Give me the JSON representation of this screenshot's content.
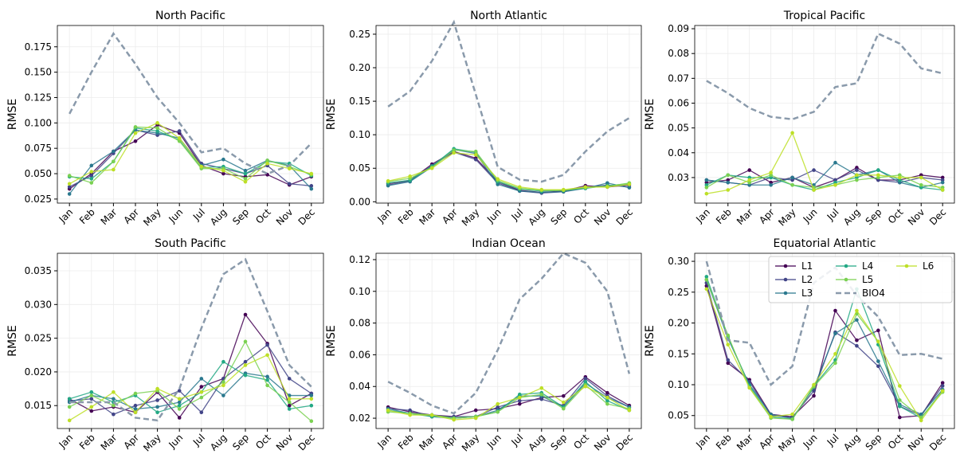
{
  "chart_data": [
    {
      "type": "line",
      "title": "North Pacific",
      "ylabel": "RMSE",
      "categories": [
        "Jan",
        "Feb",
        "Mar",
        "Apr",
        "May",
        "Jun",
        "Jul",
        "Aug",
        "Sep",
        "Oct",
        "Nov",
        "Dec"
      ],
      "ylim": [
        0.021,
        0.196
      ],
      "yticks": [
        0.025,
        {
          "value": 0.05,
          "label": "0.050"
        },
        0.075,
        {
          "value": 0.1,
          "label": "0.100"
        },
        0.125,
        {
          "value": 0.15,
          "label": "0.150"
        },
        0.175
      ],
      "grid": true,
      "series": [
        {
          "name": "L1",
          "color": "#440154",
          "values": [
            0.035,
            0.05,
            0.072,
            0.082,
            0.098,
            0.09,
            0.058,
            0.05,
            0.047,
            0.049,
            0.039,
            0.047
          ]
        },
        {
          "name": "L2",
          "color": "#414487",
          "values": [
            0.037,
            0.048,
            0.07,
            0.093,
            0.088,
            0.092,
            0.06,
            0.055,
            0.05,
            0.058,
            0.04,
            0.038
          ]
        },
        {
          "name": "L3",
          "color": "#2a788e",
          "values": [
            0.03,
            0.058,
            0.072,
            0.093,
            0.09,
            0.085,
            0.058,
            0.064,
            0.053,
            0.063,
            0.058,
            0.035
          ]
        },
        {
          "name": "L4",
          "color": "#22a884",
          "values": [
            0.047,
            0.045,
            0.062,
            0.095,
            0.092,
            0.083,
            0.056,
            0.057,
            0.05,
            0.062,
            0.06,
            0.048
          ]
        },
        {
          "name": "L5",
          "color": "#7ad151",
          "values": [
            0.048,
            0.041,
            0.062,
            0.096,
            0.095,
            0.082,
            0.055,
            0.055,
            0.045,
            0.063,
            0.057,
            0.049
          ]
        },
        {
          "name": "L6",
          "color": "#bddf26",
          "values": [
            0.04,
            0.052,
            0.054,
            0.09,
            0.1,
            0.085,
            0.057,
            0.053,
            0.042,
            0.06,
            0.055,
            0.05
          ]
        },
        {
          "name": "BIO4",
          "color": "#8a9aab",
          "dashed": true,
          "values": [
            0.109,
            0.15,
            0.188,
            0.158,
            0.125,
            0.1,
            0.071,
            0.075,
            0.06,
            0.05,
            0.058,
            0.08
          ]
        }
      ]
    },
    {
      "type": "line",
      "title": "North Atlantic",
      "ylabel": "RMSE",
      "categories": [
        "Jan",
        "Feb",
        "Mar",
        "Apr",
        "May",
        "Jun",
        "Jul",
        "Aug",
        "Sep",
        "Oct",
        "Nov",
        "Dec"
      ],
      "ylim": [
        -0.002,
        0.263
      ],
      "yticks": [
        {
          "value": 0,
          "label": "0.00"
        },
        0.05,
        {
          "value": 0.1,
          "label": "0.10"
        },
        0.15,
        {
          "value": 0.2,
          "label": "0.20"
        },
        0.25
      ],
      "grid": true,
      "series": [
        {
          "name": "L1",
          "color": "#440154",
          "values": [
            0.027,
            0.032,
            0.056,
            0.075,
            0.065,
            0.03,
            0.017,
            0.014,
            0.016,
            0.024,
            0.022,
            0.025
          ]
        },
        {
          "name": "L2",
          "color": "#414487",
          "values": [
            0.025,
            0.031,
            0.054,
            0.074,
            0.063,
            0.028,
            0.016,
            0.013,
            0.015,
            0.021,
            0.025,
            0.022
          ]
        },
        {
          "name": "L3",
          "color": "#2a788e",
          "values": [
            0.024,
            0.03,
            0.052,
            0.078,
            0.072,
            0.026,
            0.016,
            0.014,
            0.015,
            0.02,
            0.028,
            0.021
          ]
        },
        {
          "name": "L4",
          "color": "#22a884",
          "values": [
            0.028,
            0.032,
            0.053,
            0.079,
            0.074,
            0.03,
            0.019,
            0.016,
            0.017,
            0.02,
            0.024,
            0.027
          ]
        },
        {
          "name": "L5",
          "color": "#7ad151",
          "values": [
            0.03,
            0.035,
            0.051,
            0.077,
            0.075,
            0.032,
            0.02,
            0.017,
            0.017,
            0.021,
            0.023,
            0.028
          ]
        },
        {
          "name": "L6",
          "color": "#bddf26",
          "values": [
            0.031,
            0.038,
            0.05,
            0.073,
            0.07,
            0.034,
            0.022,
            0.018,
            0.018,
            0.022,
            0.022,
            0.026
          ]
        },
        {
          "name": "BIO4",
          "color": "#8a9aab",
          "dashed": true,
          "values": [
            0.142,
            0.165,
            0.21,
            0.268,
            0.16,
            0.052,
            0.033,
            0.03,
            0.04,
            0.075,
            0.105,
            0.125
          ]
        }
      ]
    },
    {
      "type": "line",
      "title": "Tropical Pacific",
      "ylabel": "RMSE",
      "categories": [
        "Jan",
        "Feb",
        "Mar",
        "Apr",
        "May",
        "Jun",
        "Jul",
        "Aug",
        "Sep",
        "Oct",
        "Nov",
        "Dec"
      ],
      "ylim": [
        0.0197,
        0.0913
      ],
      "yticks": [
        0.03,
        0.04,
        0.05,
        0.06,
        0.07,
        0.08,
        0.09
      ],
      "grid": true,
      "series": [
        {
          "name": "L1",
          "color": "#440154",
          "values": [
            0.028,
            0.029,
            0.033,
            0.028,
            0.03,
            0.026,
            0.029,
            0.034,
            0.029,
            0.029,
            0.031,
            0.03
          ]
        },
        {
          "name": "L2",
          "color": "#414487",
          "values": [
            0.029,
            0.028,
            0.027,
            0.03,
            0.029,
            0.033,
            0.029,
            0.033,
            0.029,
            0.028,
            0.03,
            0.029
          ]
        },
        {
          "name": "L3",
          "color": "#2a788e",
          "values": [
            0.029,
            0.028,
            0.027,
            0.027,
            0.03,
            0.027,
            0.036,
            0.031,
            0.033,
            0.028,
            0.026,
            0.028
          ]
        },
        {
          "name": "L4",
          "color": "#22a884",
          "values": [
            0.027,
            0.031,
            0.03,
            0.03,
            0.027,
            0.025,
            0.028,
            0.03,
            0.033,
            0.029,
            0.026,
            0.025
          ]
        },
        {
          "name": "L5",
          "color": "#7ad151",
          "values": [
            0.026,
            0.031,
            0.028,
            0.031,
            0.027,
            0.026,
            0.027,
            0.029,
            0.03,
            0.031,
            0.027,
            0.026
          ]
        },
        {
          "name": "L6",
          "color": "#bddf26",
          "values": [
            0.0235,
            0.025,
            0.029,
            0.032,
            0.048,
            0.025,
            0.027,
            0.031,
            0.031,
            0.03,
            0.03,
            0.025
          ]
        },
        {
          "name": "BIO4",
          "color": "#8a9aab",
          "dashed": true,
          "values": [
            0.069,
            0.064,
            0.058,
            0.0545,
            0.0535,
            0.0565,
            0.0665,
            0.068,
            0.088,
            0.084,
            0.074,
            0.072
          ]
        }
      ]
    },
    {
      "type": "line",
      "title": "South Pacific",
      "ylabel": "RMSE",
      "categories": [
        "Jan",
        "Feb",
        "Mar",
        "Apr",
        "May",
        "Jun",
        "Jul",
        "Aug",
        "Sep",
        "Oct",
        "Nov",
        "Dec"
      ],
      "ylim": [
        0.0116,
        0.0376
      ],
      "yticks": [
        0.015,
        {
          "value": 0.02,
          "label": "0.020"
        },
        0.025,
        {
          "value": 0.03,
          "label": "0.030"
        },
        0.035
      ],
      "grid": true,
      "series": [
        {
          "name": "L1",
          "color": "#440154",
          "values": [
            0.016,
            0.0142,
            0.0148,
            0.014,
            0.017,
            0.0132,
            0.0178,
            0.019,
            0.0285,
            0.0242,
            0.015,
            0.0168
          ]
        },
        {
          "name": "L2",
          "color": "#414487",
          "values": [
            0.0157,
            0.016,
            0.0137,
            0.015,
            0.0158,
            0.0172,
            0.014,
            0.019,
            0.0215,
            0.024,
            0.019,
            0.0168
          ]
        },
        {
          "name": "L3",
          "color": "#2a788e",
          "values": [
            0.0155,
            0.0165,
            0.016,
            0.0145,
            0.0148,
            0.0155,
            0.019,
            0.0165,
            0.0198,
            0.0193,
            0.0165,
            0.0165
          ]
        },
        {
          "name": "L4",
          "color": "#22a884",
          "values": [
            0.016,
            0.017,
            0.0155,
            0.0165,
            0.014,
            0.015,
            0.017,
            0.0215,
            0.0195,
            0.0188,
            0.0145,
            0.015
          ]
        },
        {
          "name": "L5",
          "color": "#7ad151",
          "values": [
            0.0148,
            0.0165,
            0.015,
            0.0168,
            0.0172,
            0.0145,
            0.0162,
            0.0185,
            0.0245,
            0.018,
            0.0155,
            0.0127
          ]
        },
        {
          "name": "L6",
          "color": "#bddf26",
          "values": [
            0.0128,
            0.0148,
            0.017,
            0.014,
            0.0175,
            0.016,
            0.017,
            0.018,
            0.021,
            0.0225,
            0.016,
            0.016
          ]
        },
        {
          "name": "BIO4",
          "color": "#8a9aab",
          "dashed": true,
          "values": [
            0.0155,
            0.0155,
            0.0155,
            0.0132,
            0.0128,
            0.0175,
            0.0265,
            0.0345,
            0.0367,
            0.029,
            0.021,
            0.0178
          ]
        }
      ]
    },
    {
      "type": "line",
      "title": "Indian Ocean",
      "ylabel": "RMSE",
      "categories": [
        "Jan",
        "Feb",
        "Mar",
        "Apr",
        "May",
        "Jun",
        "Jul",
        "Aug",
        "Sep",
        "Oct",
        "Nov",
        "Dec"
      ],
      "ylim": [
        0.0135,
        0.124
      ],
      "yticks": [
        0.02,
        0.04,
        0.06,
        0.08,
        {
          "value": 0.1,
          "label": "0.10"
        },
        0.12
      ],
      "grid": true,
      "series": [
        {
          "name": "L1",
          "color": "#440154",
          "values": [
            0.027,
            0.024,
            0.022,
            0.021,
            0.025,
            0.026,
            0.029,
            0.033,
            0.034,
            0.046,
            0.036,
            0.028
          ]
        },
        {
          "name": "L2",
          "color": "#414487",
          "values": [
            0.026,
            0.025,
            0.021,
            0.021,
            0.021,
            0.027,
            0.031,
            0.032,
            0.028,
            0.045,
            0.034,
            0.027
          ]
        },
        {
          "name": "L3",
          "color": "#2a788e",
          "values": [
            0.026,
            0.023,
            0.022,
            0.02,
            0.021,
            0.025,
            0.034,
            0.034,
            0.027,
            0.042,
            0.033,
            0.027
          ]
        },
        {
          "name": "L4",
          "color": "#22a884",
          "values": [
            0.025,
            0.023,
            0.021,
            0.02,
            0.021,
            0.024,
            0.035,
            0.036,
            0.027,
            0.043,
            0.031,
            0.025
          ]
        },
        {
          "name": "L5",
          "color": "#7ad151",
          "values": [
            0.024,
            0.023,
            0.022,
            0.02,
            0.021,
            0.024,
            0.033,
            0.035,
            0.026,
            0.041,
            0.029,
            0.026
          ]
        },
        {
          "name": "L6",
          "color": "#bddf26",
          "values": [
            0.025,
            0.022,
            0.022,
            0.019,
            0.02,
            0.029,
            0.033,
            0.039,
            0.03,
            0.04,
            0.033,
            0.025
          ]
        },
        {
          "name": "BIO4",
          "color": "#8a9aab",
          "dashed": true,
          "values": [
            0.043,
            0.036,
            0.028,
            0.023,
            0.036,
            0.063,
            0.095,
            0.108,
            0.124,
            0.118,
            0.1,
            0.048
          ]
        }
      ]
    },
    {
      "type": "line",
      "title": "Equatorial Atlantic",
      "ylabel": "RMSE",
      "categories": [
        "Jan",
        "Feb",
        "Mar",
        "Apr",
        "May",
        "Jun",
        "Jul",
        "Aug",
        "Sep",
        "Oct",
        "Nov",
        "Dec"
      ],
      "ylim": [
        0.029,
        0.313
      ],
      "yticks": [
        0.05,
        {
          "value": 0.1,
          "label": "0.10"
        },
        0.15,
        {
          "value": 0.2,
          "label": "0.20"
        },
        0.25,
        {
          "value": 0.3,
          "label": "0.30"
        }
      ],
      "grid": true,
      "legend": "upper right",
      "series": [
        {
          "name": "L1",
          "color": "#440154",
          "values": [
            0.26,
            0.135,
            0.108,
            0.052,
            0.048,
            0.082,
            0.22,
            0.172,
            0.188,
            0.047,
            0.05,
            0.103
          ]
        },
        {
          "name": "L2",
          "color": "#414487",
          "values": [
            0.265,
            0.14,
            0.105,
            0.05,
            0.047,
            0.09,
            0.185,
            0.163,
            0.13,
            0.065,
            0.05,
            0.098
          ]
        },
        {
          "name": "L3",
          "color": "#2a788e",
          "values": [
            0.27,
            0.175,
            0.1,
            0.052,
            0.045,
            0.095,
            0.183,
            0.205,
            0.138,
            0.068,
            0.052,
            0.092
          ]
        },
        {
          "name": "L4",
          "color": "#22a884",
          "values": [
            0.275,
            0.178,
            0.098,
            0.048,
            0.044,
            0.098,
            0.14,
            0.255,
            0.165,
            0.065,
            0.046,
            0.09
          ]
        },
        {
          "name": "L5",
          "color": "#7ad151",
          "values": [
            0.27,
            0.18,
            0.095,
            0.046,
            0.044,
            0.097,
            0.135,
            0.215,
            0.17,
            0.075,
            0.047,
            0.088
          ]
        },
        {
          "name": "L6",
          "color": "#bddf26",
          "values": [
            0.255,
            0.165,
            0.095,
            0.048,
            0.052,
            0.1,
            0.15,
            0.22,
            0.17,
            0.098,
            0.042,
            0.09
          ]
        },
        {
          "name": "BIO4",
          "color": "#8a9aab",
          "dashed": true,
          "values": [
            0.3,
            0.172,
            0.168,
            0.1,
            0.13,
            0.265,
            0.29,
            0.245,
            0.21,
            0.148,
            0.15,
            0.142
          ]
        }
      ]
    }
  ]
}
